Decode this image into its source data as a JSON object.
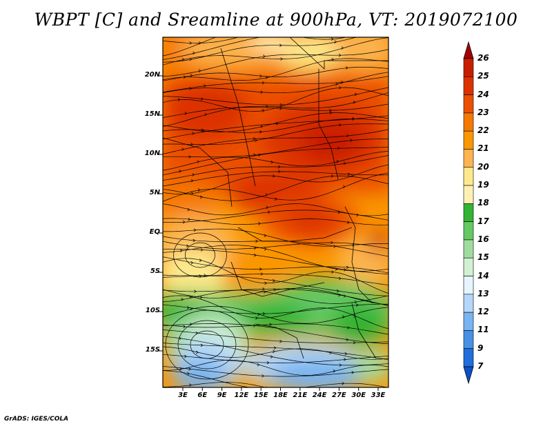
{
  "title": "WBPT [C] and Sreamline at 900hPa, VT: 2019072100",
  "credit": "GrADS: IGES/COLA",
  "map": {
    "lat_labels": [
      "20N",
      "15N",
      "10N",
      "5N",
      "EQ",
      "5S",
      "10S",
      "15S"
    ],
    "lon_labels": [
      "3E",
      "6E",
      "9E",
      "12E",
      "15E",
      "18E",
      "21E",
      "24E",
      "27E",
      "30E",
      "33E"
    ],
    "colorbar": {
      "labels": [
        "26",
        "25",
        "24",
        "23",
        "22",
        "21",
        "20",
        "19",
        "18",
        "17",
        "16",
        "15",
        "14",
        "13",
        "12",
        "11",
        "9",
        "7"
      ],
      "colors": [
        "#a50000",
        "#c81e00",
        "#dc3200",
        "#eb5000",
        "#f57800",
        "#fa9600",
        "#fcb450",
        "#fde98c",
        "#fff0b4",
        "#32b432",
        "#64c864",
        "#a0dca0",
        "#d2f0d2",
        "#e6f5ff",
        "#b4d7fa",
        "#78b4f0",
        "#4691e6",
        "#1e6edc",
        "#0a50c8"
      ]
    }
  }
}
